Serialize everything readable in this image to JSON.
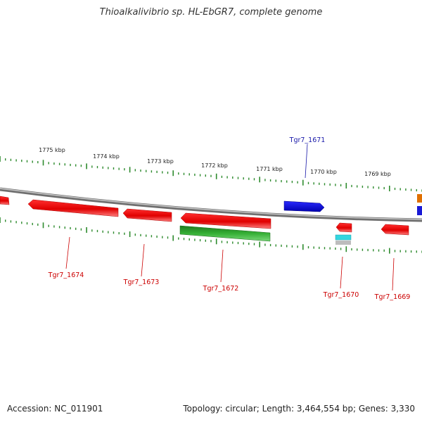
{
  "title": "Thioalkalivibrio sp. HL-EbGR7, complete genome",
  "footer": {
    "accession": "Accession: NC_011901",
    "summary": "Topology: circular; Length: 3,464,554 bp; Genes: 3,330"
  },
  "colors": {
    "backbone": "#8a8a8a",
    "tick": "#2e8b2e",
    "forward_gene": "#1a1ad6",
    "reverse_gene": "#e01010",
    "rna_gene": "#2aa02a",
    "label_red": "#cc0000",
    "label_blue": "#1a1aaa",
    "orange_feature": "#e07000",
    "cyan_feature": "#33d6e0"
  },
  "scale_labels": [
    "1775 kbp",
    "1774 kbp",
    "1773 kbp",
    "1772 kbp",
    "1771 kbp",
    "1770 kbp",
    "1769 kbp"
  ],
  "genes": [
    {
      "id": "gene-1674",
      "label": "Tgr7_1674",
      "strand": "reverse"
    },
    {
      "id": "gene-1673",
      "label": "Tgr7_1673",
      "strand": "reverse"
    },
    {
      "id": "gene-1672",
      "label": "Tgr7_1672",
      "strand": "reverse"
    },
    {
      "id": "gene-1671",
      "label": "Tgr7_1671",
      "strand": "forward"
    },
    {
      "id": "gene-1670",
      "label": "Tgr7_1670",
      "strand": "reverse"
    },
    {
      "id": "gene-1669",
      "label": "Tgr7_1669",
      "strand": "reverse"
    }
  ]
}
